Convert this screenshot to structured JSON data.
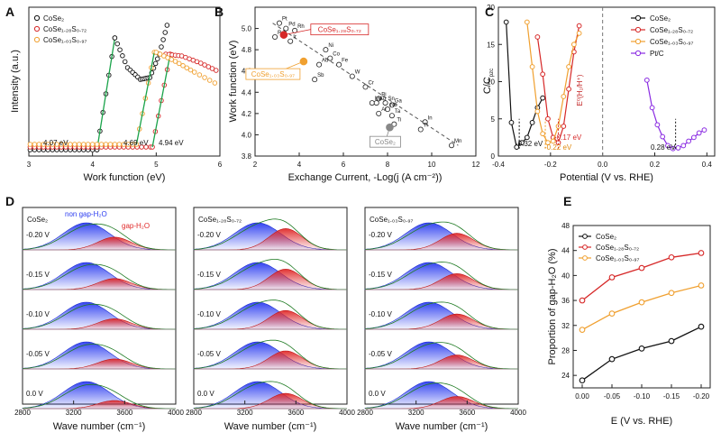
{
  "chart_data": [
    {
      "panel": "A",
      "type": "scatter",
      "xlabel": "Work function (eV)",
      "ylabel": "Intensity (a.u.)",
      "xlim": [
        3,
        6
      ],
      "xticks": [
        "3",
        "4",
        "5",
        "6"
      ],
      "legend": [
        "CoSe₂",
        "CoSe₁.₂₈S₀.₇₂",
        "CoSe₁.₀₃S₀.₉₇"
      ],
      "colors": [
        "#111111",
        "#d62828",
        "#f0a030"
      ],
      "fit_color": "#1aa34a",
      "annotations": [
        "4.07 eV",
        "4.69 eV",
        "4.94 eV"
      ],
      "onsets": [
        4.07,
        4.69,
        4.94
      ]
    },
    {
      "panel": "B",
      "type": "scatter",
      "xlabel": "Exchange Current, -Log(j (A cm⁻²))",
      "ylabel": "Work function (eV)",
      "xlim": [
        2,
        12
      ],
      "ylim": [
        3.8,
        5.2
      ],
      "xticks": [
        "2",
        "4",
        "6",
        "8",
        "10",
        "12"
      ],
      "yticks": [
        "3.8",
        "4.0",
        "4.2",
        "4.4",
        "4.6",
        "4.8",
        "5.0"
      ],
      "points": [
        {
          "label": "Pt",
          "x": 3.1,
          "y": 5.05
        },
        {
          "label": "Pd",
          "x": 3.4,
          "y": 5.0
        },
        {
          "label": "Rh",
          "x": 3.8,
          "y": 4.98
        },
        {
          "label": "Re",
          "x": 2.9,
          "y": 4.92
        },
        {
          "label": "Ir",
          "x": 3.6,
          "y": 4.88
        },
        {
          "label": "Ni",
          "x": 5.2,
          "y": 4.8
        },
        {
          "label": "Co",
          "x": 5.4,
          "y": 4.72
        },
        {
          "label": "Fe",
          "x": 5.8,
          "y": 4.66
        },
        {
          "label": "Au",
          "x": 4.9,
          "y": 4.66
        },
        {
          "label": "W",
          "x": 6.4,
          "y": 4.55
        },
        {
          "label": "Sb",
          "x": 4.7,
          "y": 4.52
        },
        {
          "label": "Cr",
          "x": 7.0,
          "y": 4.45
        },
        {
          "label": "Bi",
          "x": 7.6,
          "y": 4.34
        },
        {
          "label": "Mo",
          "x": 7.3,
          "y": 4.3
        },
        {
          "label": "Sn",
          "x": 7.9,
          "y": 4.3
        },
        {
          "label": "Ga",
          "x": 8.2,
          "y": 4.28
        },
        {
          "label": "Nb",
          "x": 8.0,
          "y": 4.24
        },
        {
          "label": "Al",
          "x": 7.6,
          "y": 4.2
        },
        {
          "label": "Ta",
          "x": 8.2,
          "y": 4.18
        },
        {
          "label": "Ti",
          "x": 8.3,
          "y": 4.1
        },
        {
          "label": "Ag",
          "x": 7.5,
          "y": 4.3
        },
        {
          "label": "In",
          "x": 9.7,
          "y": 4.12
        },
        {
          "label": "Tl",
          "x": 9.5,
          "y": 4.05
        },
        {
          "label": "Mn",
          "x": 10.9,
          "y": 3.9
        }
      ],
      "highlights": [
        {
          "label": "CoSe₁.₂₈S₀.₇₂",
          "x": 3.3,
          "y": 4.94,
          "color": "#d62828"
        },
        {
          "label": "CoSe₁.₀₃S₀.₉₇",
          "x": 4.2,
          "y": 4.69,
          "color": "#f0a030"
        },
        {
          "label": "CoSe₂",
          "x": 8.1,
          "y": 4.07,
          "color": "#888888"
        }
      ],
      "fit_line": [
        [
          2.8,
          5.05
        ],
        [
          11.2,
          3.9
        ]
      ]
    },
    {
      "panel": "C",
      "type": "line",
      "xlabel": "Potential (V vs. RHE)",
      "ylabel": "C/C",
      "ylabel_sub": "pzc",
      "xlim": [
        -0.4,
        0.43
      ],
      "ylim": [
        0,
        20
      ],
      "xticks": [
        "-0.4",
        "-0.2",
        "0.0",
        "0.2",
        "0.4"
      ],
      "yticks": [
        "0",
        "5",
        "10",
        "15",
        "20"
      ],
      "legend": [
        "CoSe₂",
        "CoSe₁.₂₈S₀.₇₂",
        "CoSe₁.₀₃S₀.₉₇",
        "Pt/C"
      ],
      "colors": [
        "#111111",
        "#d62828",
        "#f0a030",
        "#8a2be2"
      ],
      "series": [
        {
          "name": "CoSe₂",
          "x": [
            -0.37,
            -0.35,
            -0.33,
            -0.31,
            -0.29,
            -0.27,
            -0.25,
            -0.23
          ],
          "y": [
            18,
            4.5,
            1.2,
            1.8,
            2.5,
            4.5,
            6.5,
            7.8
          ]
        },
        {
          "name": "CoSe₁.₂₈S₀.₇₂",
          "x": [
            -0.25,
            -0.23,
            -0.21,
            -0.19,
            -0.17,
            -0.15,
            -0.13,
            -0.11,
            -0.09
          ],
          "y": [
            16,
            11,
            5,
            2.5,
            1.8,
            4,
            9,
            14,
            17.5
          ]
        },
        {
          "name": "CoSe₁.₀₃S₀.₉₇",
          "x": [
            -0.29,
            -0.27,
            -0.25,
            -0.23,
            -0.21,
            -0.19,
            -0.17,
            -0.15,
            -0.13,
            -0.11,
            -0.09
          ],
          "y": [
            18,
            12,
            6,
            3,
            1.8,
            2,
            4,
            8,
            12,
            15,
            16.5
          ]
        },
        {
          "name": "Pt/C",
          "x": [
            0.17,
            0.19,
            0.21,
            0.23,
            0.25,
            0.27,
            0.29,
            0.31,
            0.33,
            0.35,
            0.37,
            0.39
          ],
          "y": [
            10.2,
            6.5,
            4.2,
            2.6,
            1.4,
            1.0,
            1.1,
            1.4,
            2.0,
            2.5,
            3.1,
            3.5
          ]
        }
      ],
      "vline_label": "E⁰(H₂/H⁺)",
      "annotations": [
        "-0.32 eV",
        "-0.17 eV",
        "-0.22 eV",
        "0.28 eV"
      ]
    },
    {
      "panel": "D",
      "type": "area",
      "xlabel": "Wave number (cm⁻¹)",
      "xlim": [
        2800,
        4000
      ],
      "xticks": [
        "2800",
        "3200",
        "3600",
        "4000"
      ],
      "columns": [
        "CoSe₂",
        "CoSe₁.₂₈S₀.₇₂",
        "CoSe₁.₀₃S₀.₉₇"
      ],
      "rows": [
        "-0.20 V",
        "-0.15 V",
        "-0.10 V",
        "-0.05 V",
        "0.0 V"
      ],
      "component_labels": [
        "non gap-H₂O",
        "gap-H₂O"
      ],
      "component_colors": [
        "#2b3cf0",
        "#e02828"
      ],
      "peak_centers": [
        3300,
        3520
      ],
      "gap_fraction": [
        [
          0.32,
          0.29,
          0.28,
          0.27,
          0.23
        ],
        [
          0.44,
          0.43,
          0.41,
          0.4,
          0.36
        ],
        [
          0.38,
          0.37,
          0.36,
          0.34,
          0.31
        ]
      ]
    },
    {
      "panel": "E",
      "type": "line",
      "xlabel": "E (V vs. RHE)",
      "ylabel": "Proportion of gap-H₂O (%)",
      "ylim": [
        22,
        48
      ],
      "categories": [
        "0.00",
        "-0.05",
        "-0.10",
        "-0.15",
        "-0.20"
      ],
      "yticks": [
        "24",
        "28",
        "32",
        "36",
        "40",
        "44",
        "48"
      ],
      "legend": [
        "CoSe₂",
        "CoSe₁.₂₈S₀.₇₂",
        "CoSe₁.₀₃S₀.₉₇"
      ],
      "colors": [
        "#111111",
        "#d62828",
        "#f0a030"
      ],
      "series": [
        {
          "name": "CoSe₂",
          "values": [
            23.2,
            26.6,
            28.3,
            29.5,
            31.8
          ]
        },
        {
          "name": "CoSe₁.₂₈S₀.₇₂",
          "values": [
            36.0,
            39.7,
            41.2,
            42.9,
            43.6
          ]
        },
        {
          "name": "CoSe₁.₀₃S₀.₉₇",
          "values": [
            31.3,
            33.9,
            35.7,
            37.2,
            38.4
          ]
        }
      ]
    }
  ]
}
